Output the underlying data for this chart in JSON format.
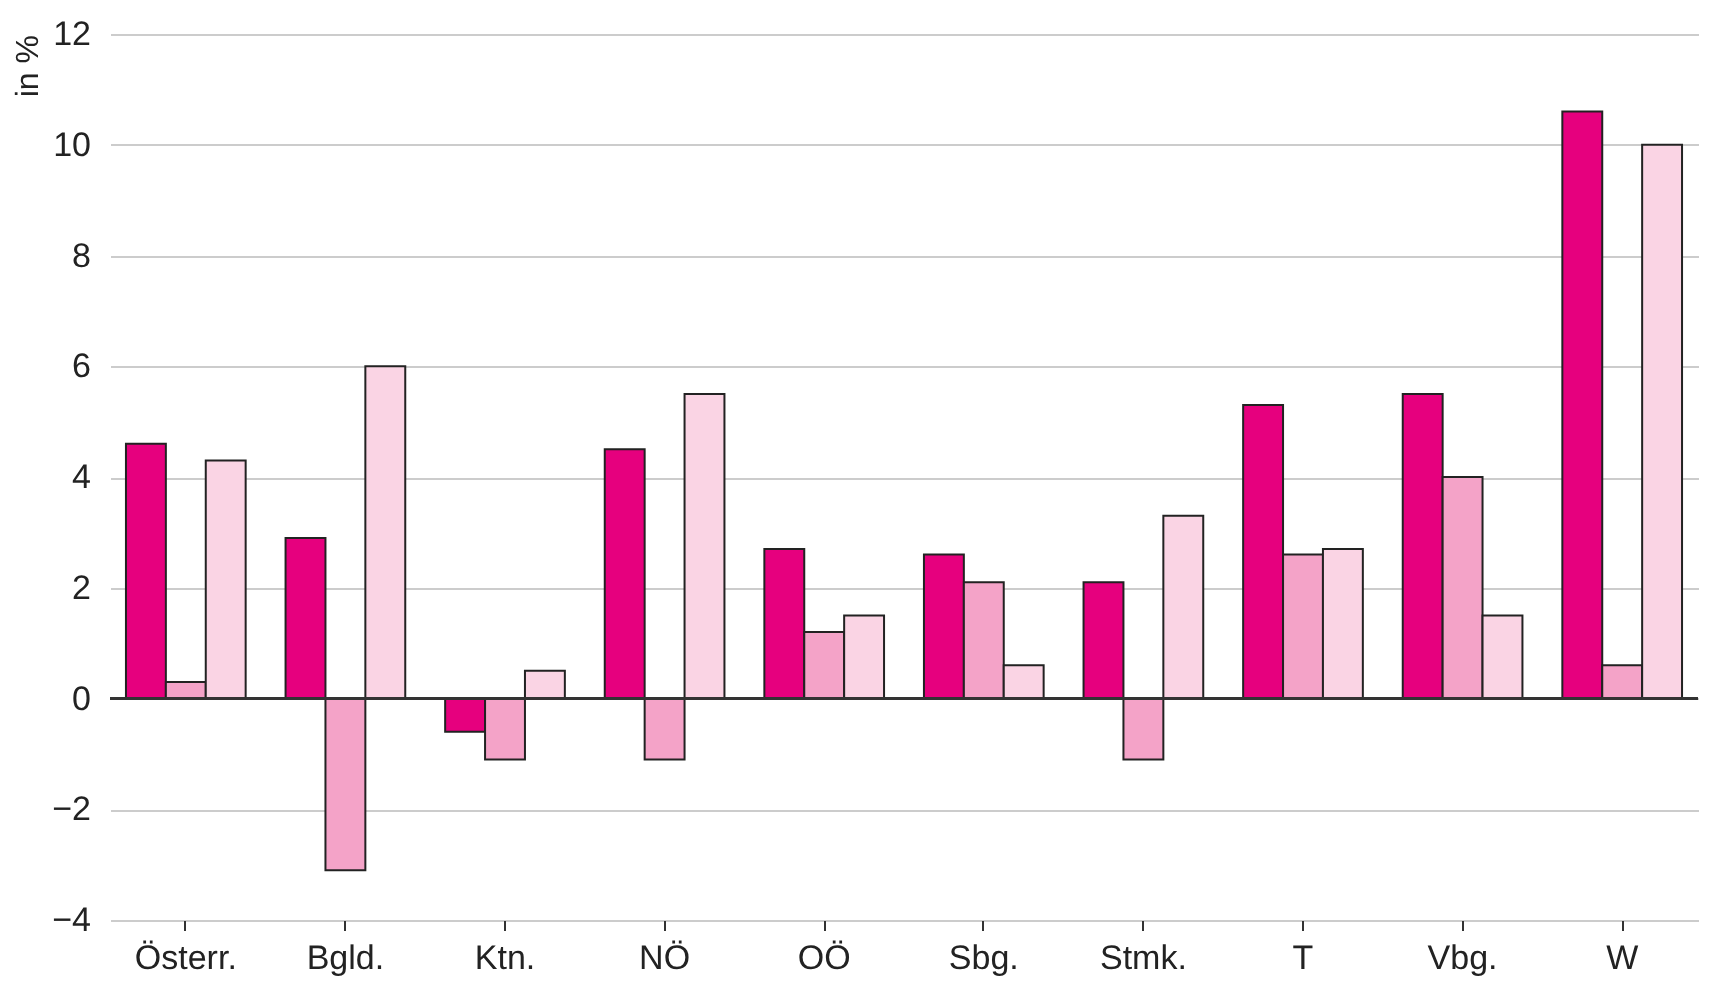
{
  "chart_data": {
    "type": "bar",
    "ylabel": "in %",
    "categories": [
      "Österr.",
      "Bgld.",
      "Ktn.",
      "NÖ",
      "OÖ",
      "Sbg.",
      "Stmk.",
      "T",
      "Vbg.",
      "W"
    ],
    "series": [
      {
        "color": "#e6007e",
        "values": [
          4.6,
          2.9,
          -0.6,
          4.5,
          2.7,
          2.6,
          2.1,
          5.3,
          5.5,
          10.6
        ]
      },
      {
        "color": "#f4a3c8",
        "values": [
          0.3,
          -3.1,
          -1.1,
          -1.1,
          1.2,
          2.1,
          -1.1,
          2.6,
          4.0,
          0.6
        ]
      },
      {
        "color": "#fad4e4",
        "values": [
          4.3,
          6.0,
          0.5,
          5.5,
          1.5,
          0.6,
          3.3,
          2.7,
          1.5,
          10.0
        ]
      }
    ],
    "ylim": [
      -4,
      12
    ],
    "yticks": [
      -4,
      -2,
      0,
      2,
      4,
      6,
      8,
      10,
      12
    ],
    "grid": "y",
    "legend": false,
    "ref_lines": [
      {
        "axis": "y",
        "value": 0,
        "color": "#333333"
      }
    ]
  }
}
